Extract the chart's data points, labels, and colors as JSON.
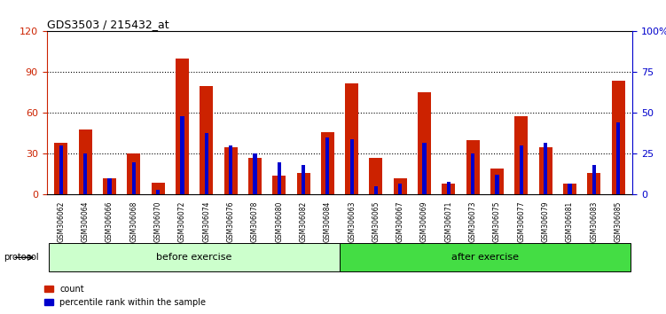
{
  "title": "GDS3503 / 215432_at",
  "samples": [
    "GSM306062",
    "GSM306064",
    "GSM306066",
    "GSM306068",
    "GSM306070",
    "GSM306072",
    "GSM306074",
    "GSM306076",
    "GSM306078",
    "GSM306080",
    "GSM306082",
    "GSM306084",
    "GSM306063",
    "GSM306065",
    "GSM306067",
    "GSM306069",
    "GSM306071",
    "GSM306073",
    "GSM306075",
    "GSM306077",
    "GSM306079",
    "GSM306081",
    "GSM306083",
    "GSM306085"
  ],
  "count_values": [
    38,
    48,
    12,
    30,
    9,
    100,
    80,
    35,
    27,
    14,
    16,
    46,
    82,
    27,
    12,
    75,
    8,
    40,
    19,
    58,
    35,
    8,
    16,
    84
  ],
  "percentile_values": [
    30,
    25,
    10,
    20,
    3,
    48,
    38,
    30,
    25,
    20,
    18,
    35,
    34,
    5,
    7,
    32,
    8,
    25,
    12,
    30,
    32,
    7,
    18,
    44
  ],
  "n_before": 12,
  "n_after": 12,
  "before_label": "before exercise",
  "after_label": "after exercise",
  "protocol_label": "protocol",
  "legend_count": "count",
  "legend_percentile": "percentile rank within the sample",
  "ylim_left": [
    0,
    120
  ],
  "ylim_right": [
    0,
    100
  ],
  "yticks_left": [
    0,
    30,
    60,
    90,
    120
  ],
  "yticks_right": [
    0,
    25,
    50,
    75,
    100
  ],
  "ytick_labels_right": [
    "0",
    "25",
    "50",
    "75",
    "100%"
  ],
  "bar_color_count": "#cc2200",
  "bar_color_percentile": "#0000cc",
  "before_color": "#ccffcc",
  "after_color": "#44dd44",
  "title_color": "#000000",
  "left_axis_color": "#cc2200",
  "right_axis_color": "#0000cc",
  "bar_width": 0.55
}
